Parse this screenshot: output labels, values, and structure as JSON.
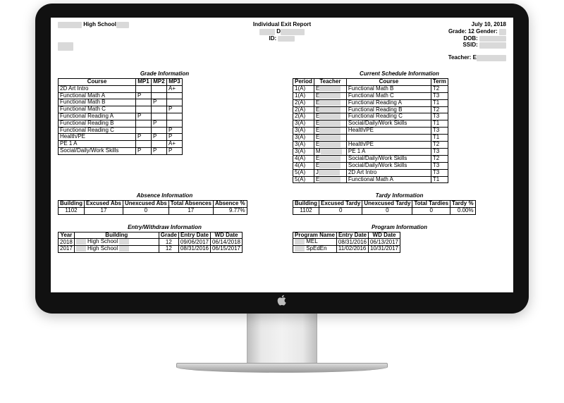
{
  "header": {
    "school_prefix_blur": "██████",
    "school": " High School",
    "school_suffix_blur": "███",
    "title": "Individual Exit Report",
    "date": "July 10, 2018",
    "name_line_blur": "████",
    "name_prefix": " D",
    "name_suffix_blur": "██████",
    "id_label": "ID: ",
    "id_blur": "████",
    "grade_label": "Grade: ",
    "grade": "12",
    "gender_label": " Gender: ",
    "gender_blur": "█",
    "dob_label": "DOB: ",
    "dob_blur": "██████",
    "ssid_label": "SSID: ",
    "ssid_blur": "██████",
    "teacher_label": "Teacher: E",
    "teacher_blur": "██████"
  },
  "grades": {
    "title": "Grade Information",
    "cols": [
      "Course",
      "MP1",
      "MP2",
      "MP3"
    ],
    "rows": [
      [
        "2D Art Intro",
        "",
        "",
        "A+"
      ],
      [
        "Functional Math A",
        "P",
        "",
        ""
      ],
      [
        "Functional Math B",
        "",
        "P",
        ""
      ],
      [
        "Functional Math C",
        "",
        "",
        "P"
      ],
      [
        "Functional Reading A",
        "P",
        "",
        ""
      ],
      [
        "Functional Reading B",
        "",
        "P",
        ""
      ],
      [
        "Functional Reading C",
        "",
        "",
        "P"
      ],
      [
        "Health/PE",
        "P",
        "P",
        "P"
      ],
      [
        "PE 1 A",
        "",
        "",
        "A+"
      ],
      [
        "Social/Daily/Work Skills",
        "P",
        "P",
        "P"
      ]
    ]
  },
  "schedule": {
    "title": "Current Schedule Information",
    "cols": [
      "Period",
      "Teacher",
      "Course",
      "Term"
    ],
    "rows": [
      [
        "1(A)",
        "E",
        "Functional Math B",
        "T2"
      ],
      [
        "1(A)",
        "E",
        "Functional Math C",
        "T3"
      ],
      [
        "2(A)",
        "E",
        "Functional Reading A",
        "T1"
      ],
      [
        "2(A)",
        "E",
        "Functional Reading B",
        "T2"
      ],
      [
        "2(A)",
        "E",
        "Functional Reading C",
        "T3"
      ],
      [
        "3(A)",
        "E",
        "Social/Daily/Work Skills",
        "T1"
      ],
      [
        "3(A)",
        "E",
        "Health/PE",
        "T3"
      ],
      [
        "3(A)",
        "E",
        "",
        "T1"
      ],
      [
        "3(A)",
        "E",
        "Health/PE",
        "T2"
      ],
      [
        "3(A)",
        "M",
        "PE 1 A",
        "T3"
      ],
      [
        "4(A)",
        "E",
        "Social/Daily/Work Skills",
        "T2"
      ],
      [
        "4(A)",
        "E",
        "Social/Daily/Work Skills",
        "T3"
      ],
      [
        "5(A)",
        "J",
        "2D Art Intro",
        "T3"
      ],
      [
        "5(A)",
        "E",
        "Functional Math A",
        "T1"
      ]
    ]
  },
  "absence": {
    "title": "Absence Information",
    "cols": [
      "Building",
      "Excused Abs",
      "Unexcused Abs",
      "Total Absences",
      "Absence %"
    ],
    "row": [
      "1102",
      "17",
      "0",
      "17",
      "9.77%"
    ]
  },
  "tardy": {
    "title": "Tardy Information",
    "cols": [
      "Building",
      "Excused Tardy",
      "Unexcused Tardy",
      "Total Tardies",
      "Tardy %"
    ],
    "row": [
      "1102",
      "0",
      "0",
      "0",
      "0.00%"
    ]
  },
  "entry": {
    "title": "Entry/Withdraw Information",
    "cols": [
      "Year",
      "Building",
      "Grade",
      "Entry Date",
      "WD Date"
    ],
    "rows": [
      [
        "2018",
        "██ High School ██",
        "12",
        "09/06/2017",
        "06/14/2018"
      ],
      [
        "2017",
        "██ High School ██",
        "12",
        "08/31/2016",
        "06/15/2017"
      ]
    ]
  },
  "program": {
    "title": "Program Information",
    "cols": [
      "Program Name",
      "Entry Date",
      "WD Date"
    ],
    "rows": [
      [
        "██ MEL",
        "08/31/2016",
        "06/13/2017"
      ],
      [
        "██ SpEdEn",
        "11/02/2016",
        "10/31/2017"
      ]
    ]
  },
  "style": {
    "font": "Arial",
    "border_color": "#000000",
    "blur_color": "#d9d9d9",
    "bg": "#ffffff"
  }
}
